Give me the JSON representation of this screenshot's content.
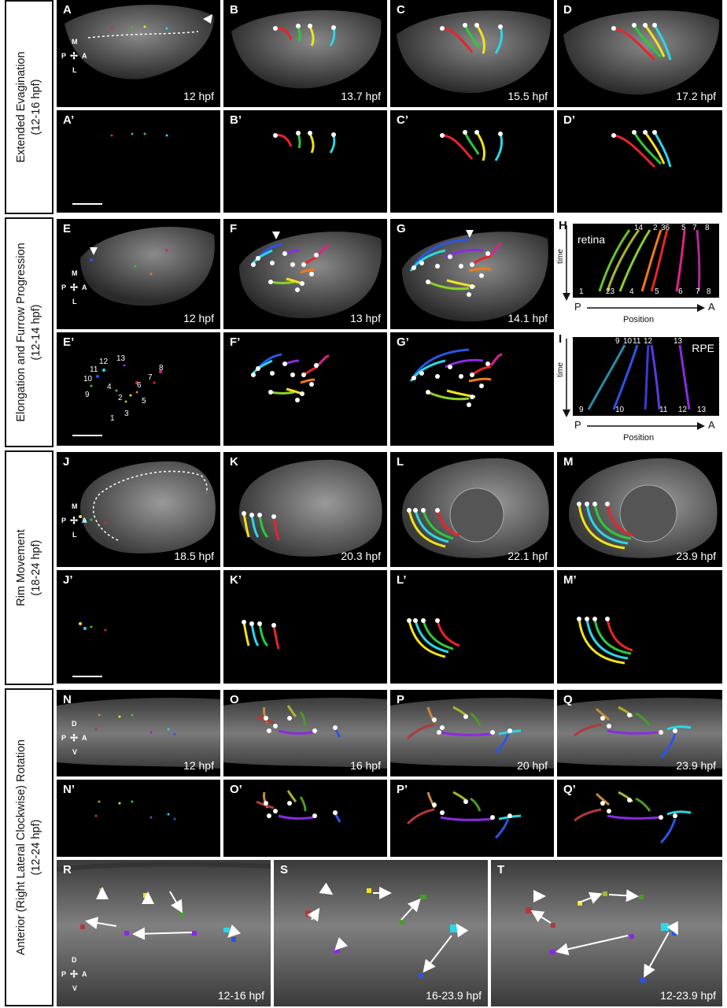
{
  "sections": [
    {
      "line1": "Extended Evagination",
      "line2": "(12-16 hpf)"
    },
    {
      "line1": "Elongation and Furrow Progression",
      "line2": "(12-14 hpf)"
    },
    {
      "line1": "Rim Movement",
      "line2": "(18-24 hpf)"
    },
    {
      "line1": "Anterior (Right Lateral Clockwise) Rotation",
      "line2": "(12-24 hpf)"
    }
  ],
  "compass": {
    "lateral": {
      "top": "M",
      "bottom": "L",
      "left": "P",
      "right": "A"
    },
    "dorsal": {
      "top": "D",
      "bottom": "V",
      "left": "P",
      "right": "A"
    }
  },
  "panels": {
    "A": {
      "label": "A",
      "time": "12 hpf"
    },
    "B": {
      "label": "B",
      "time": "13.7 hpf"
    },
    "C": {
      "label": "C",
      "time": "15.5 hpf"
    },
    "D": {
      "label": "D",
      "time": "17.2 hpf"
    },
    "A2": {
      "label": "A’"
    },
    "B2": {
      "label": "B’"
    },
    "C2": {
      "label": "C’"
    },
    "D2": {
      "label": "D’"
    },
    "E": {
      "label": "E",
      "time": "12 hpf"
    },
    "F": {
      "label": "F",
      "time": "13 hpf"
    },
    "G": {
      "label": "G",
      "time": "14.1 hpf"
    },
    "E2": {
      "label": "E’",
      "cell_numbers": [
        "1",
        "2",
        "3",
        "4",
        "5",
        "6",
        "7",
        "8",
        "9",
        "10",
        "11",
        "12",
        "13"
      ]
    },
    "F2": {
      "label": "F’"
    },
    "G2": {
      "label": "G’"
    },
    "J": {
      "label": "J",
      "time": "18.5 hpf"
    },
    "K": {
      "label": "K",
      "time": "20.3 hpf"
    },
    "L": {
      "label": "L",
      "time": "22.1 hpf"
    },
    "M": {
      "label": "M",
      "time": "23.9 hpf"
    },
    "J2": {
      "label": "J’"
    },
    "K2": {
      "label": "K’"
    },
    "L2": {
      "label": "L’"
    },
    "M2": {
      "label": "M’"
    },
    "N": {
      "label": "N",
      "time": "12 hpf"
    },
    "O": {
      "label": "O",
      "time": "16 hpf"
    },
    "P": {
      "label": "P",
      "time": "20 hpf"
    },
    "Q": {
      "label": "Q",
      "time": "23.9 hpf"
    },
    "N2": {
      "label": "N’"
    },
    "O2": {
      "label": "O’"
    },
    "P2": {
      "label": "P’"
    },
    "Q2": {
      "label": "Q’"
    },
    "R": {
      "label": "R",
      "time": "12-16 hpf"
    },
    "S": {
      "label": "S",
      "time": "16-23.9 hpf"
    },
    "T": {
      "label": "T",
      "time": "12-23.9 hpf"
    }
  },
  "plotH": {
    "label": "H",
    "tag": "retina",
    "top_numbers": [
      "14",
      "2",
      "36",
      "5",
      "7",
      "8"
    ],
    "bottom_numbers": [
      "1",
      "23",
      "4",
      "5",
      "6",
      "7",
      "8"
    ],
    "y_axis": "time",
    "x_left": "P",
    "x_right": "A",
    "x_axis": "Position"
  },
  "plotI": {
    "label": "I",
    "tag": "RPE",
    "top_numbers": [
      "9",
      "10",
      "11",
      "12",
      "13"
    ],
    "bottom_numbers": [
      "9",
      "10",
      "11",
      "12",
      "13"
    ],
    "y_axis": "time",
    "x_left": "P",
    "x_right": "A",
    "x_axis": "Position"
  },
  "colors": {
    "red": "#e8242a",
    "green": "#2ec83a",
    "yellow": "#f2e21c",
    "cyan": "#2ad7e6",
    "blue": "#2a55e6",
    "purple": "#8a2be2",
    "magenta": "#e0208c",
    "orange": "#f07a1a",
    "olive": "#a8b42a",
    "brown": "#c98a3a",
    "maroon": "#b03a3a",
    "lime": "#8ad12a"
  }
}
